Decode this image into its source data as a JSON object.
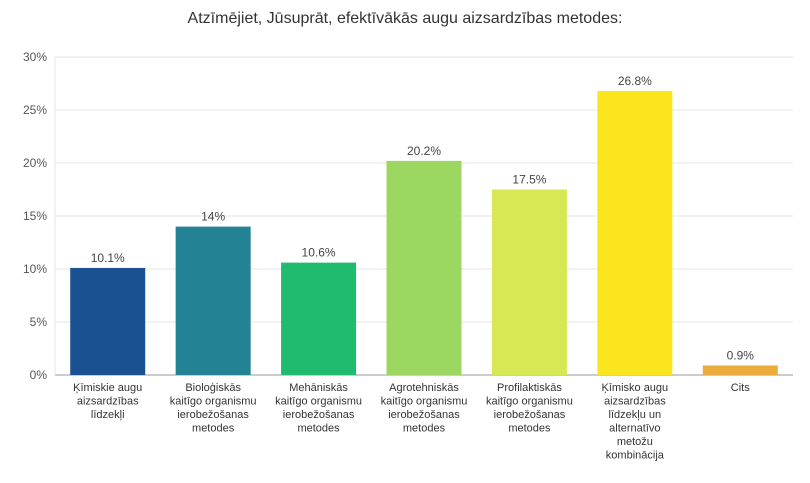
{
  "chart_data": {
    "type": "bar",
    "title": "Atzīmējiet, Jūsuprāt, efektīvākās augu aizsardzības metodes:",
    "xlabel": "",
    "ylabel": "",
    "ylim": [
      0,
      30
    ],
    "yticks": [
      "0%",
      "5%",
      "10%",
      "15%",
      "20%",
      "25%",
      "30%"
    ],
    "grid": true,
    "categories": [
      [
        "Ķīmiskie augu",
        "aizsardzības",
        "līdzekļi"
      ],
      [
        "Bioloģiskās",
        "kaitīgo organismu",
        "ierobežošanas",
        "metodes"
      ],
      [
        "Mehāniskās",
        "kaitīgo organismu",
        "ierobežošanas",
        "metodes"
      ],
      [
        "Agrotehniskās",
        "kaitīgo organismu",
        "ierobežošanas",
        "metodes"
      ],
      [
        "Profilaktiskās",
        "kaitīgo organismu",
        "ierobežošanas",
        "metodes"
      ],
      [
        "Ķīmisko augu",
        "aizsardzības",
        "līdzekļu un",
        "alternatīvo",
        "metožu",
        "kombinācija"
      ],
      [
        "Cits"
      ]
    ],
    "values": [
      10.1,
      14,
      10.6,
      20.2,
      17.5,
      26.8,
      0.9
    ],
    "value_labels": [
      "10.1%",
      "14%",
      "10.6%",
      "20.2%",
      "17.5%",
      "26.8%",
      "0.9%"
    ],
    "colors": [
      "#1a5190",
      "#238293",
      "#1fbb6e",
      "#9cd762",
      "#d7e854",
      "#fae51e",
      "#eaac3c"
    ]
  }
}
